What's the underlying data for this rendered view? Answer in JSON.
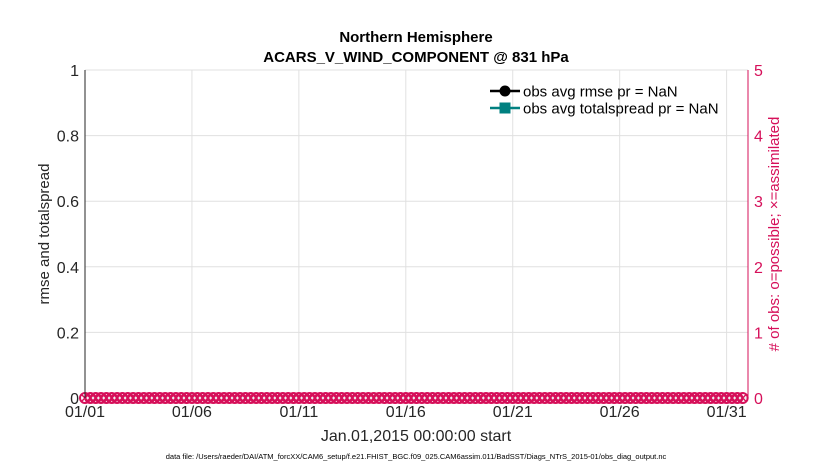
{
  "chart_data": {
    "type": "line",
    "title": "Northern Hemisphere",
    "subtitle": "ACARS_V_WIND_COMPONENT @ 831 hPa",
    "xlabel": "Jan.01,2015 00:00:00 start",
    "ylabel": "rmse and totalspread",
    "y2label": "# of obs: o=possible; ×=assimilated",
    "footnote": "data file: /Users/raeder/DAI/ATM_forcXX/CAM6_setup/f.e21.FHIST_BGC.f09_025.CAM6assim.011/BadSST/Diags_NTrS_2015-01/obs_diag_output.nc",
    "xlim": [
      "2015-01-01 00:00",
      "2015-02-01 00:00"
    ],
    "ylim": [
      0,
      1
    ],
    "y2lim": [
      0,
      5
    ],
    "xticks": [
      "01/01",
      "01/06",
      "01/11",
      "01/16",
      "01/21",
      "01/26",
      "01/31"
    ],
    "xtick_days": [
      1,
      6,
      11,
      16,
      21,
      26,
      31
    ],
    "yticks": [
      "0",
      "0.2",
      "0.4",
      "0.6",
      "0.8",
      "1"
    ],
    "y2ticks": [
      "0",
      "1",
      "2",
      "3",
      "4",
      "5"
    ],
    "grid": true,
    "legend_placement": "top-right",
    "colors": {
      "rmse": "#000000",
      "totalspread": "#008080",
      "obs_count": "#D6105A",
      "grid": "#E0E0E0"
    },
    "series": [
      {
        "name": "obs avg rmse pr = NaN",
        "axis": "left",
        "marker": "circle",
        "values": "NaN"
      },
      {
        "name": "obs avg totalspread pr = NaN",
        "axis": "left",
        "marker": "square",
        "values": "NaN"
      },
      {
        "axis": "right",
        "marker": "circle",
        "label": "possible",
        "value_every_6h": 0
      },
      {
        "axis": "right",
        "marker": "x",
        "label": "assimilated",
        "value_every_6h": 0
      }
    ],
    "obs_times": {
      "first": "2015-01-01 00:00",
      "last": "2015-01-31 18:00",
      "interval_hours": 6
    }
  }
}
